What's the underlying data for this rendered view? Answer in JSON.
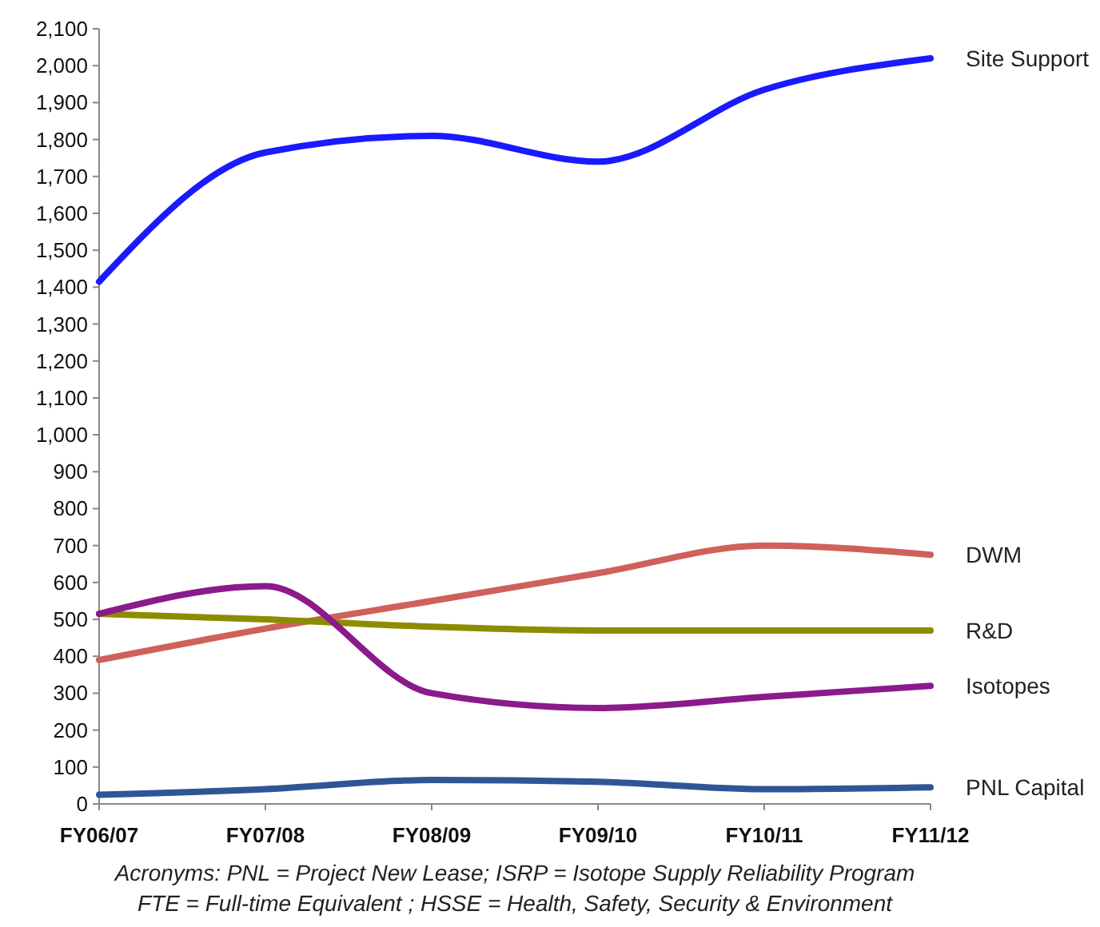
{
  "chart_data": {
    "type": "line",
    "categories": [
      "FY06/07",
      "FY07/08",
      "FY08/09",
      "FY09/10",
      "FY10/11",
      "FY11/12"
    ],
    "ylim": [
      0,
      2100
    ],
    "yticks": [
      0,
      {
        "value": 100,
        "label": "100"
      },
      {
        "value": 200,
        "label": "200"
      },
      {
        "value": 300,
        "label": "300"
      },
      {
        "value": 400,
        "label": "400"
      },
      {
        "value": 500,
        "label": "500"
      },
      {
        "value": 600,
        "label": "600"
      },
      {
        "value": 700,
        "label": "700"
      },
      {
        "value": 800,
        "label": "800"
      },
      {
        "value": 900,
        "label": "900"
      },
      {
        "value": 1000,
        "label": "1,000"
      },
      {
        "value": 1100,
        "label": "1,100"
      },
      {
        "value": 1200,
        "label": "1,200"
      },
      {
        "value": 1300,
        "label": "1,300"
      },
      {
        "value": 1400,
        "label": "1,400"
      },
      {
        "value": 1500,
        "label": "1,500"
      },
      {
        "value": 1600,
        "label": "1,600"
      },
      {
        "value": 1700,
        "label": "1,700"
      },
      {
        "value": 1800,
        "label": "1,800"
      },
      {
        "value": 1900,
        "label": "1,900"
      },
      {
        "value": 2000,
        "label": "2,000"
      },
      {
        "value": 2100,
        "label": "2,100"
      }
    ],
    "grid": false,
    "legend": false,
    "marker": "none",
    "line_style": "solid",
    "series": [
      {
        "name": "Site Support",
        "color": "#1a1aff",
        "values": [
          1415,
          1765,
          1810,
          1740,
          1935,
          2020
        ]
      },
      {
        "name": "DWM",
        "color": "#d0605a",
        "values": [
          390,
          475,
          550,
          625,
          700,
          675
        ]
      },
      {
        "name": "R&D",
        "color": "#8c8c00",
        "values": [
          515,
          500,
          480,
          470,
          470,
          470
        ]
      },
      {
        "name": "Isotopes",
        "color": "#8b1a8b",
        "values": [
          515,
          590,
          300,
          260,
          290,
          320
        ]
      },
      {
        "name": "PNL Capital",
        "color": "#2f5597",
        "values": [
          25,
          40,
          65,
          60,
          40,
          45
        ]
      }
    ],
    "annotations": [
      "Acronyms: PNL = Project New Lease; ISRP = Isotope Supply Reliability Program",
      "FTE = Full-time Equivalent ; HSSE = Health, Safety, Security & Environment"
    ]
  }
}
